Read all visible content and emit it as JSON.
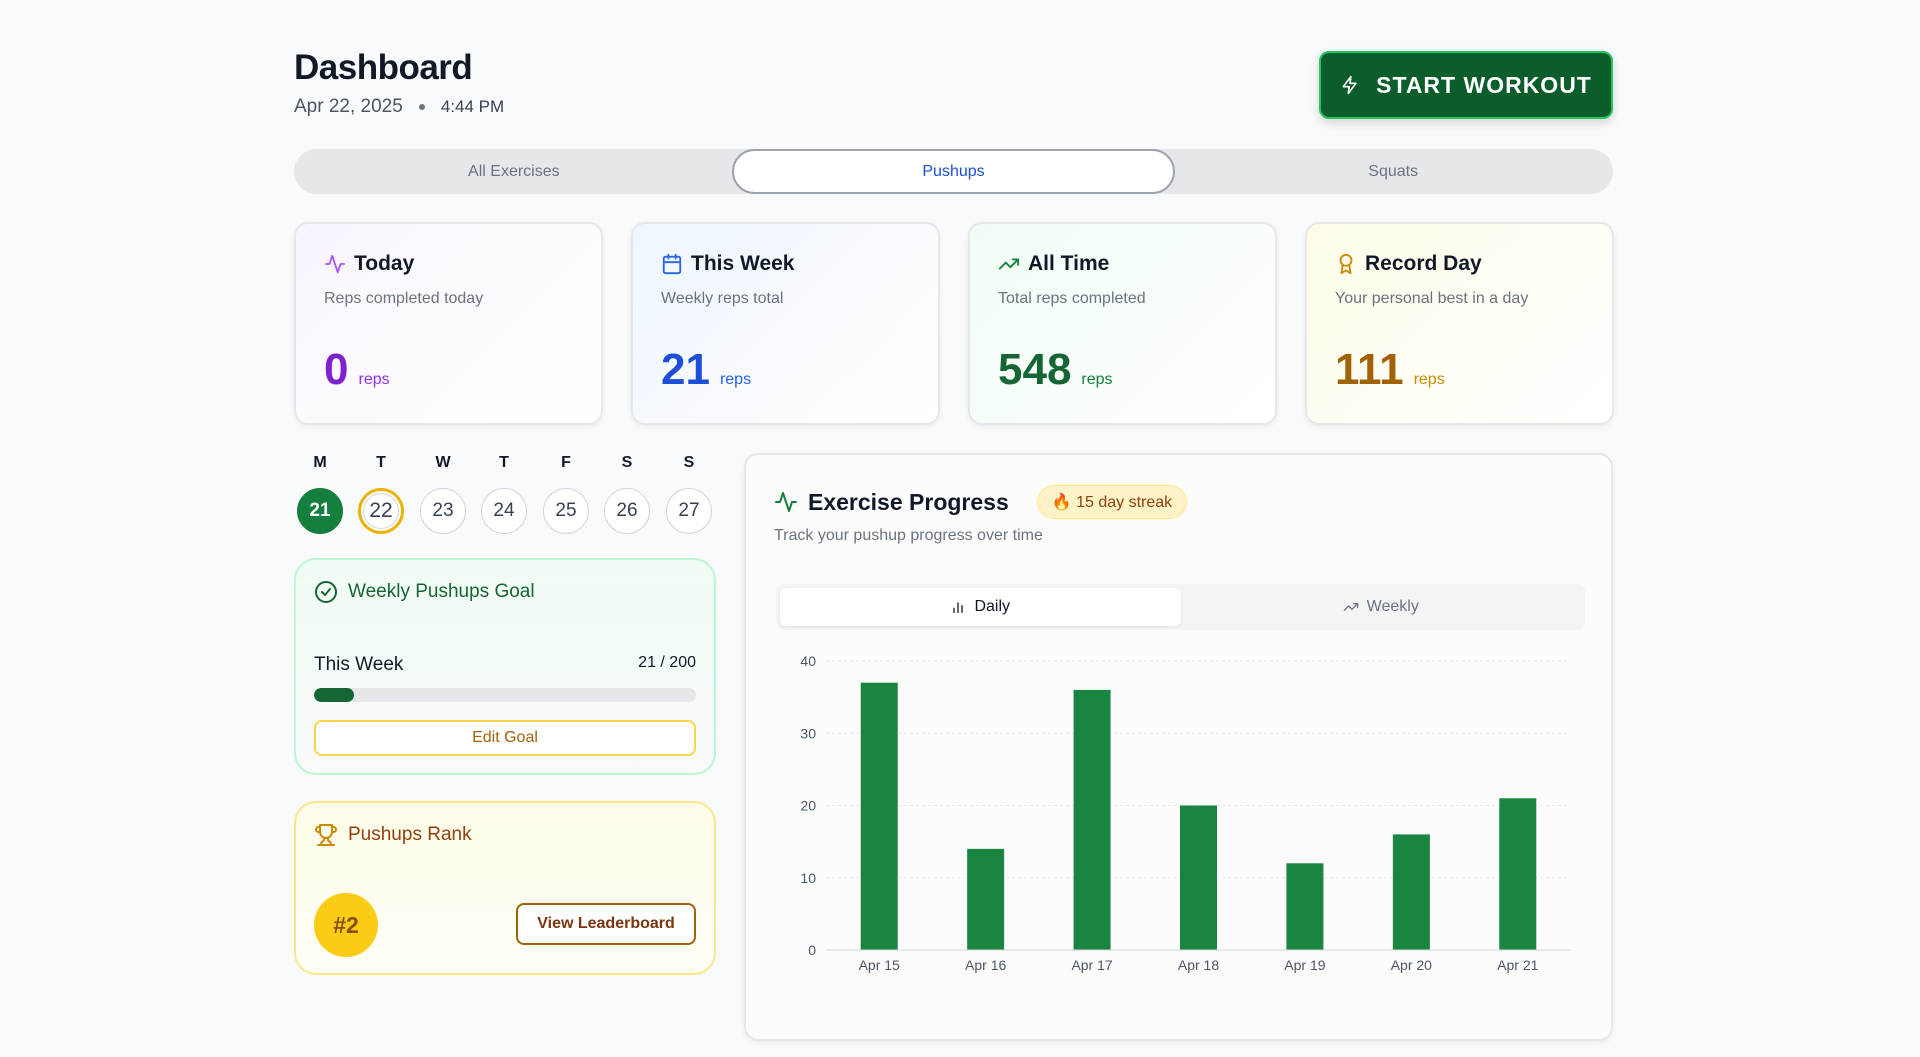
{
  "header": {
    "title": "Dashboard",
    "date": "Apr 22, 2025",
    "time": "4:44 PM",
    "start_label": "START WORKOUT",
    "start_icon": "bolt-icon"
  },
  "tabs": [
    {
      "label": "All Exercises",
      "active": false
    },
    {
      "label": "Pushups",
      "active": true
    },
    {
      "label": "Squats",
      "active": false
    }
  ],
  "stats": [
    {
      "title": "Today",
      "desc": "Reps completed today",
      "value": "0",
      "unit": "reps",
      "icon": "activity-icon",
      "color": "#7e22ce"
    },
    {
      "title": "This Week",
      "desc": "Weekly reps total",
      "value": "21",
      "unit": "reps",
      "icon": "calendar-icon",
      "color": "#1d4ed8"
    },
    {
      "title": "All Time",
      "desc": "Total reps completed",
      "value": "548",
      "unit": "reps",
      "icon": "trending-up-icon",
      "color": "#166534"
    },
    {
      "title": "Record Day",
      "desc": "Your personal best in a day",
      "value": "111",
      "unit": "reps",
      "icon": "award-icon",
      "color": "#a16207"
    }
  ],
  "week": {
    "labels": [
      "M",
      "T",
      "W",
      "T",
      "F",
      "S",
      "S"
    ],
    "dates": [
      "21",
      "22",
      "23",
      "24",
      "25",
      "26",
      "27"
    ],
    "completed_index": 0,
    "today_index": 1
  },
  "goal": {
    "title": "Weekly Pushups Goal",
    "row_label": "This Week",
    "progress_text": "21 / 200",
    "progress_fraction": 0.105,
    "edit_label": "Edit Goal"
  },
  "rank": {
    "title": "Pushups Rank",
    "rank": "#2",
    "button_label": "View Leaderboard"
  },
  "progress": {
    "title": "Exercise Progress",
    "streak": "🔥 15 day streak",
    "desc": "Track your pushup progress over time",
    "segments": [
      {
        "label": "Daily",
        "active": true,
        "icon": "bar-chart-icon"
      },
      {
        "label": "Weekly",
        "active": false,
        "icon": "trending-up-icon"
      }
    ]
  },
  "chart_data": {
    "type": "bar",
    "categories": [
      "Apr 15",
      "Apr 16",
      "Apr 17",
      "Apr 18",
      "Apr 19",
      "Apr 20",
      "Apr 21"
    ],
    "values": [
      37,
      14,
      36,
      20,
      12,
      16,
      21
    ],
    "ylim": [
      0,
      40
    ],
    "yticks": [
      0,
      10,
      20,
      30,
      40
    ],
    "grid": true,
    "bar_color": "#1a8540",
    "title": "",
    "xlabel": "",
    "ylabel": ""
  }
}
